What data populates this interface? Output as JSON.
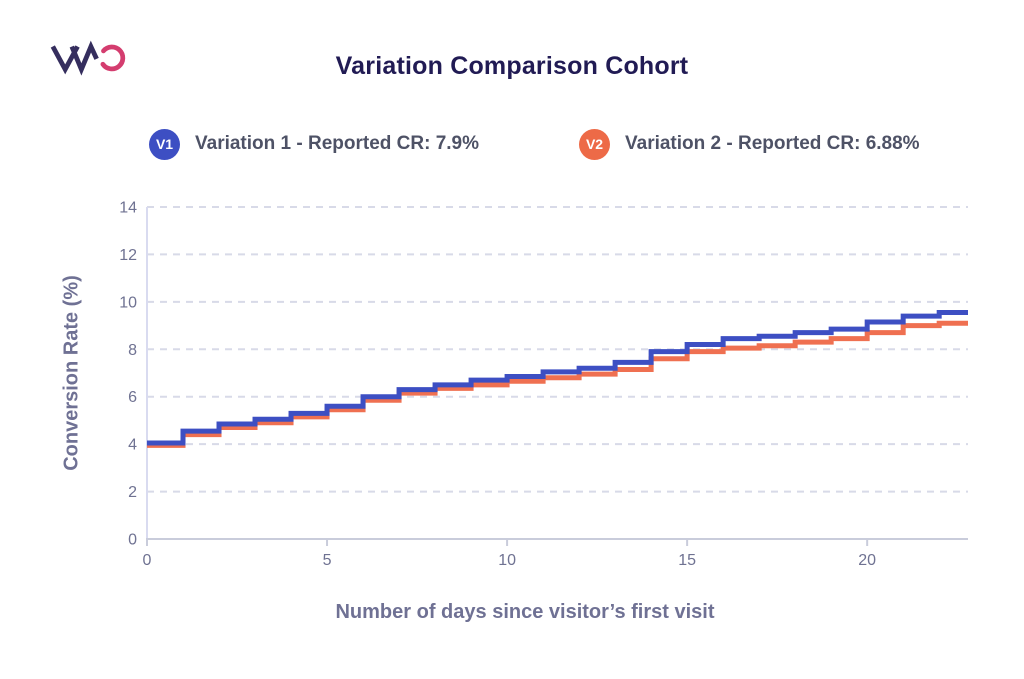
{
  "header": {
    "title": "Variation Comparison Cohort",
    "logo_text": "VWO",
    "logo_colors": {
      "vw": "#352e5e",
      "o": "#d43d6f"
    }
  },
  "legend": [
    {
      "badge": "V1",
      "label": "Variation 1 - Reported CR: 7.9%",
      "color": "#3d4fc3"
    },
    {
      "badge": "V2",
      "label": "Variation 2 - Reported CR: 6.88%",
      "color": "#ed6a47"
    }
  ],
  "chart_data": {
    "type": "line",
    "step": true,
    "title": "Variation Comparison Cohort",
    "xlabel": "Number of days since visitor’s first visit",
    "ylabel": "Conversion Rate (%)",
    "xlim": [
      0,
      22.8
    ],
    "ylim": [
      0,
      14
    ],
    "xticks": [
      0,
      5,
      10,
      15,
      20
    ],
    "yticks": [
      0,
      2,
      4,
      6,
      8,
      10,
      12,
      14
    ],
    "grid": "horizontal-dashed",
    "legend_position": "top",
    "x": [
      0,
      1,
      2,
      3,
      4,
      5,
      6,
      7,
      8,
      9,
      10,
      11,
      12,
      13,
      14,
      15,
      16,
      17,
      18,
      19,
      20,
      21,
      22
    ],
    "series": [
      {
        "name": "Variation 1",
        "color": "#3d4fc3",
        "values": [
          4.05,
          4.55,
          4.85,
          5.05,
          5.3,
          5.6,
          6.0,
          6.3,
          6.5,
          6.7,
          6.85,
          7.05,
          7.2,
          7.45,
          7.9,
          8.2,
          8.45,
          8.55,
          8.7,
          8.85,
          9.15,
          9.4,
          9.55
        ]
      },
      {
        "name": "Variation 2",
        "color": "#ef7051",
        "values": [
          3.95,
          4.4,
          4.7,
          4.9,
          5.15,
          5.45,
          5.85,
          6.15,
          6.35,
          6.5,
          6.65,
          6.8,
          6.95,
          7.15,
          7.6,
          7.9,
          8.05,
          8.15,
          8.3,
          8.45,
          8.7,
          9.0,
          9.1
        ]
      }
    ],
    "colors": {
      "grid": "#d8dae8",
      "y_axis": "#d9dbf0",
      "x_axis": "#c9ccdb",
      "tick_label": "#6f7292"
    }
  }
}
